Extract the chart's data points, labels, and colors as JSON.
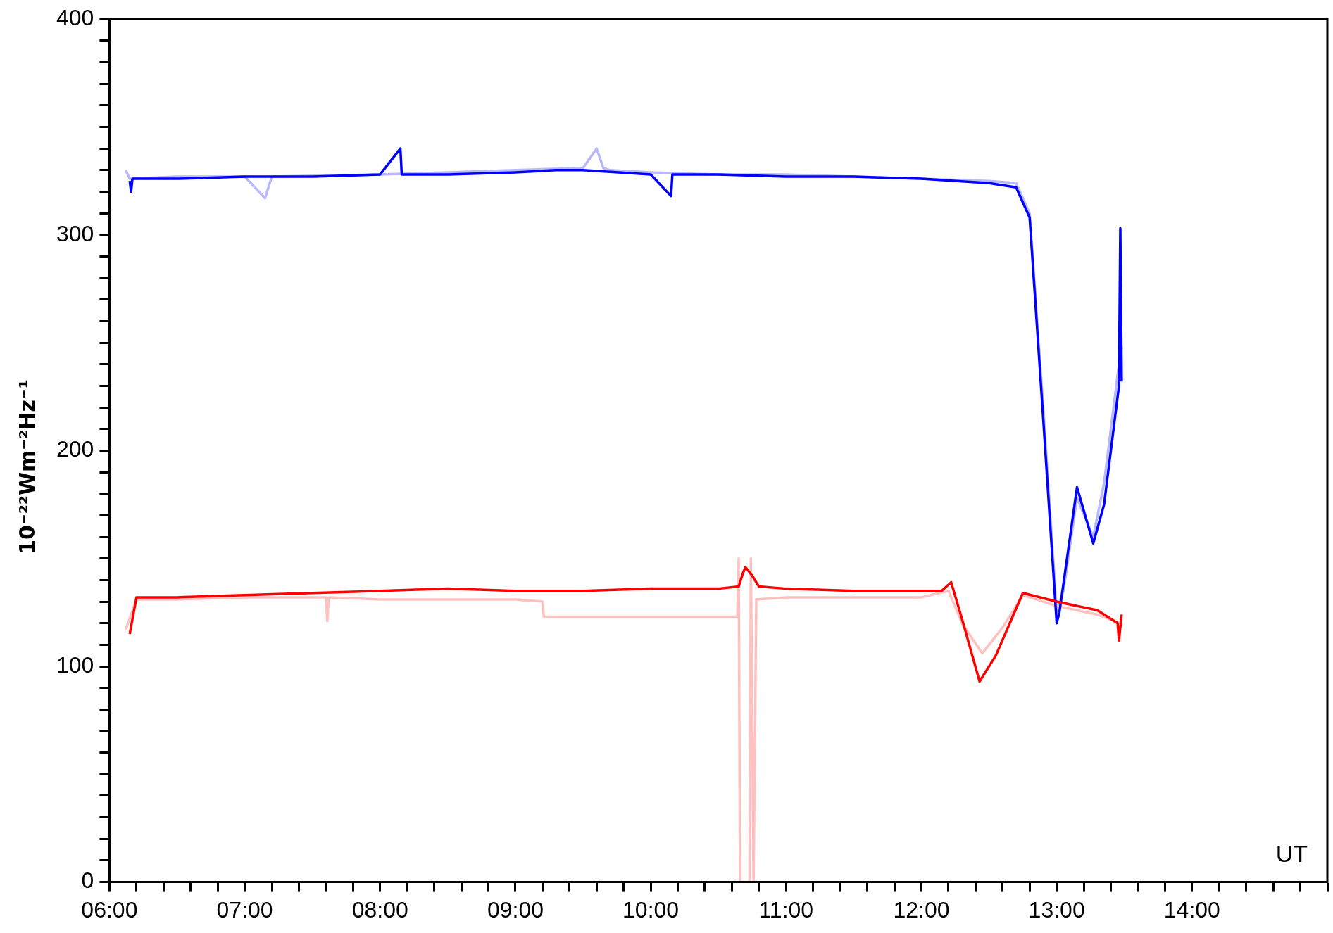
{
  "chart_data": {
    "type": "line",
    "ylabel": "10⁻²²Wm⁻²Hz⁻¹",
    "annotations": [
      "UT"
    ],
    "marker": "none",
    "line_style": "solid",
    "legend": false,
    "xlim": [
      6,
      15
    ],
    "ylim": [
      0,
      400
    ],
    "xticks": [
      {
        "value": 6,
        "label": "06:00"
      },
      {
        "value": 6.2,
        "label": null
      },
      {
        "value": 6.4,
        "label": null
      },
      {
        "value": 6.6,
        "label": null
      },
      {
        "value": 6.8,
        "label": null
      },
      {
        "value": 7,
        "label": "07:00"
      },
      {
        "value": 7.2,
        "label": null
      },
      {
        "value": 7.4,
        "label": null
      },
      {
        "value": 7.6,
        "label": null
      },
      {
        "value": 7.8,
        "label": null
      },
      {
        "value": 8,
        "label": "08:00"
      },
      {
        "value": 8.2,
        "label": null
      },
      {
        "value": 8.4,
        "label": null
      },
      {
        "value": 8.6,
        "label": null
      },
      {
        "value": 8.8,
        "label": null
      },
      {
        "value": 9,
        "label": "09:00"
      },
      {
        "value": 9.2,
        "label": null
      },
      {
        "value": 9.4,
        "label": null
      },
      {
        "value": 9.6,
        "label": null
      },
      {
        "value": 9.8,
        "label": null
      },
      {
        "value": 10,
        "label": "10:00"
      },
      {
        "value": 10.2,
        "label": null
      },
      {
        "value": 10.4,
        "label": null
      },
      {
        "value": 10.6,
        "label": null
      },
      {
        "value": 10.8,
        "label": null
      },
      {
        "value": 11,
        "label": "11:00"
      },
      {
        "value": 11.2,
        "label": null
      },
      {
        "value": 11.4,
        "label": null
      },
      {
        "value": 11.6,
        "label": null
      },
      {
        "value": 11.8,
        "label": null
      },
      {
        "value": 12,
        "label": "12:00"
      },
      {
        "value": 12.2,
        "label": null
      },
      {
        "value": 12.4,
        "label": null
      },
      {
        "value": 12.6,
        "label": null
      },
      {
        "value": 12.8,
        "label": null
      },
      {
        "value": 13,
        "label": "13:00"
      },
      {
        "value": 13.2,
        "label": null
      },
      {
        "value": 13.4,
        "label": null
      },
      {
        "value": 13.6,
        "label": null
      },
      {
        "value": 13.8,
        "label": null
      },
      {
        "value": 14,
        "label": "14:00"
      },
      {
        "value": 14.2,
        "label": null
      },
      {
        "value": 14.4,
        "label": null
      },
      {
        "value": 14.6,
        "label": null
      },
      {
        "value": 14.8,
        "label": null
      },
      {
        "value": 15,
        "label": null
      }
    ],
    "yticks": [
      0,
      {
        "value": 10,
        "label": null
      },
      {
        "value": 20,
        "label": null
      },
      {
        "value": 30,
        "label": null
      },
      {
        "value": 40,
        "label": null
      },
      {
        "value": 50,
        "label": null
      },
      {
        "value": 60,
        "label": null
      },
      {
        "value": 70,
        "label": null
      },
      {
        "value": 80,
        "label": null
      },
      {
        "value": 90,
        "label": null
      },
      100,
      {
        "value": 110,
        "label": null
      },
      {
        "value": 120,
        "label": null
      },
      {
        "value": 130,
        "label": null
      },
      {
        "value": 140,
        "label": null
      },
      {
        "value": 150,
        "label": null
      },
      {
        "value": 160,
        "label": null
      },
      {
        "value": 170,
        "label": null
      },
      {
        "value": 180,
        "label": null
      },
      {
        "value": 190,
        "label": null
      },
      200,
      {
        "value": 210,
        "label": null
      },
      {
        "value": 220,
        "label": null
      },
      {
        "value": 230,
        "label": null
      },
      {
        "value": 240,
        "label": null
      },
      {
        "value": 250,
        "label": null
      },
      {
        "value": 260,
        "label": null
      },
      {
        "value": 270,
        "label": null
      },
      {
        "value": 280,
        "label": null
      },
      {
        "value": 290,
        "label": null
      },
      300,
      {
        "value": 310,
        "label": null
      },
      {
        "value": 320,
        "label": null
      },
      {
        "value": 330,
        "label": null
      },
      {
        "value": 340,
        "label": null
      },
      {
        "value": 350,
        "label": null
      },
      {
        "value": 360,
        "label": null
      },
      {
        "value": 370,
        "label": null
      },
      {
        "value": 380,
        "label": null
      },
      {
        "value": 390,
        "label": null
      },
      400
    ],
    "series": [
      {
        "color": "#b8b8ff",
        "x": [
          6.12,
          6.15,
          6.5,
          7.0,
          7.15,
          7.2,
          8.0,
          8.5,
          9.0,
          9.5,
          9.6,
          9.65,
          9.7,
          10.0,
          10.5,
          11.0,
          11.5,
          12.0,
          12.5,
          12.7,
          12.8,
          12.9,
          13.0,
          13.05,
          13.15,
          13.27,
          13.35,
          13.45,
          13.48
        ],
        "values": [
          330,
          326,
          327,
          327,
          317,
          327,
          328,
          329,
          330,
          331,
          340,
          331,
          330,
          329,
          328,
          328,
          327,
          326,
          325,
          324,
          310,
          220,
          125,
          135,
          178,
          160,
          185,
          235,
          248
        ]
      },
      {
        "color": "#ffc0c0",
        "x": [
          6.12,
          6.2,
          6.5,
          7.0,
          7.6,
          7.61,
          7.62,
          8.0,
          8.5,
          9.0,
          9.2,
          9.21,
          10.0,
          10.64,
          10.65,
          10.66,
          10.67,
          10.73,
          10.74,
          10.76,
          10.78,
          11.0,
          11.5,
          12.0,
          12.2,
          12.3,
          12.45,
          12.6,
          12.75,
          13.0,
          13.3,
          13.47
        ],
        "values": [
          117,
          131,
          131,
          132,
          132,
          121,
          132,
          131,
          131,
          131,
          130,
          123,
          123,
          123,
          150,
          0,
          0,
          0,
          150,
          0,
          131,
          132,
          132,
          132,
          135,
          120,
          106,
          118,
          133,
          128,
          124,
          120
        ]
      },
      {
        "color": "#0000ff",
        "x": [
          6.15,
          6.16,
          6.17,
          6.5,
          7.0,
          7.5,
          8.0,
          8.15,
          8.16,
          8.5,
          9.0,
          9.3,
          9.5,
          10.0,
          10.15,
          10.16,
          10.5,
          11.0,
          11.5,
          12.0,
          12.5,
          12.7,
          12.8,
          12.9,
          13.0,
          13.02,
          13.15,
          13.27,
          13.35,
          13.45,
          13.46,
          13.47,
          13.48
        ],
        "values": [
          325,
          320,
          326,
          326,
          327,
          327,
          328,
          340,
          328,
          328,
          329,
          330,
          330,
          328,
          318,
          328,
          328,
          327,
          327,
          326,
          324,
          322,
          308,
          215,
          120,
          125,
          183,
          157,
          175,
          225,
          230,
          303,
          232
        ]
      },
      {
        "color": "#ff0000",
        "x": [
          6.15,
          6.2,
          6.5,
          7.0,
          7.5,
          8.0,
          8.5,
          9.0,
          9.5,
          10.0,
          10.5,
          10.65,
          10.68,
          10.7,
          10.75,
          10.8,
          11.0,
          11.5,
          12.0,
          12.15,
          12.22,
          12.3,
          12.43,
          12.55,
          12.75,
          13.0,
          13.3,
          13.45,
          13.46,
          13.48
        ],
        "values": [
          115,
          132,
          132,
          133,
          134,
          135,
          136,
          135,
          135,
          136,
          136,
          137,
          143,
          146,
          142,
          137,
          136,
          135,
          135,
          135,
          139,
          122,
          93,
          105,
          134,
          130,
          126,
          120,
          112,
          124
        ]
      }
    ]
  }
}
